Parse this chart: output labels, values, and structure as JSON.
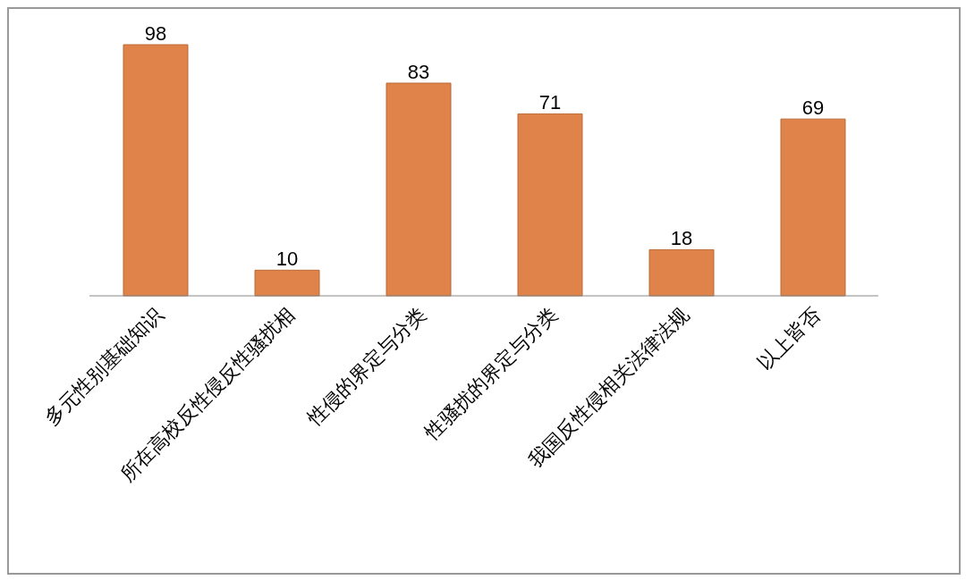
{
  "chart_data": {
    "type": "bar",
    "categories": [
      "多元性别基础知识",
      "所在高校反性侵反性骚扰相",
      "性侵的界定与分类",
      "性骚扰的界定与分类",
      "我国反性侵相关法律法规",
      "以上皆否"
    ],
    "values": [
      98,
      10,
      83,
      71,
      18,
      69
    ],
    "color": "#e0834a",
    "data_labels": true,
    "grid": false,
    "legend": false
  }
}
